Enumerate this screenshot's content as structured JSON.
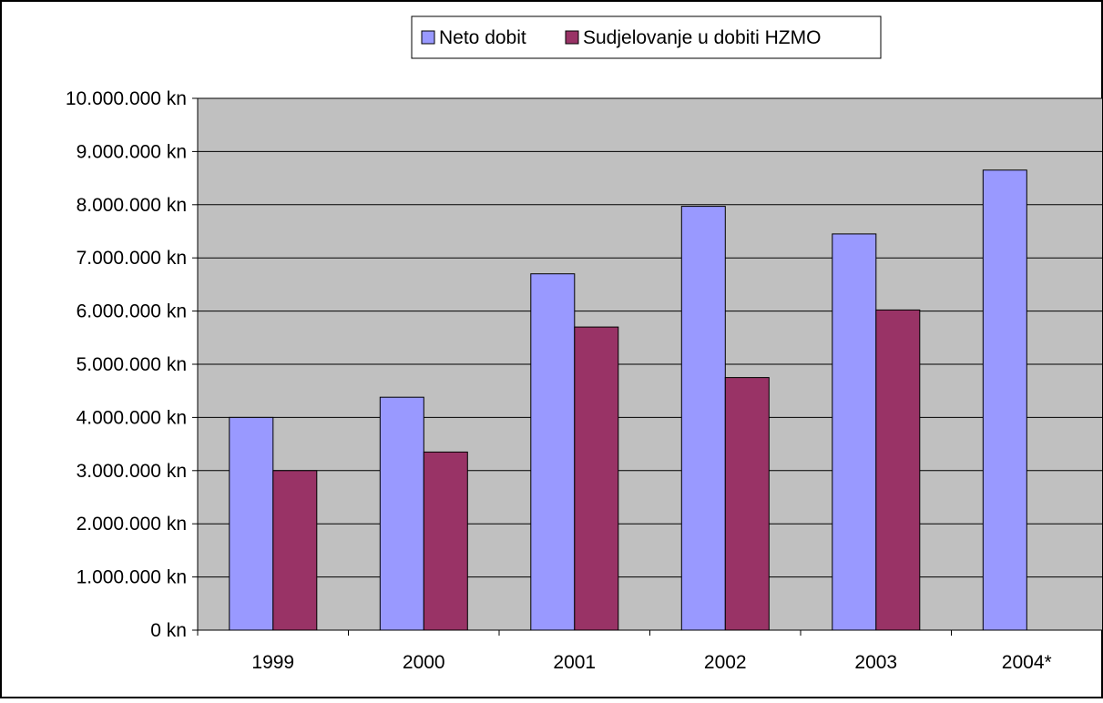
{
  "chart_data": {
    "type": "bar",
    "categories": [
      "1999",
      "2000",
      "2001",
      "2002",
      "2003",
      "2004*"
    ],
    "series": [
      {
        "name": "Neto dobit",
        "values": [
          4000000,
          4380000,
          6700000,
          7970000,
          7450000,
          8650000
        ],
        "color": "#9999ff"
      },
      {
        "name": "Sudjelovanje u dobiti HZMO",
        "values": [
          3000000,
          3350000,
          5700000,
          4750000,
          6020000,
          null
        ],
        "color": "#993366"
      }
    ],
    "ylim": [
      0,
      10000000
    ],
    "ytick_labels": [
      "0 kn",
      "1.000.000 kn",
      "2.000.000 kn",
      "3.000.000 kn",
      "4.000.000 kn",
      "5.000.000 kn",
      "6.000.000 kn",
      "7.000.000 kn",
      "8.000.000 kn",
      "9.000.000 kn",
      "10.000.000 kn"
    ],
    "grid": true,
    "legend": "top",
    "plot_background": "#c0c0c0"
  }
}
